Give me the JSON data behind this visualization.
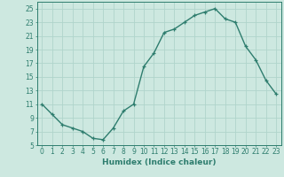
{
  "x": [
    0,
    1,
    2,
    3,
    4,
    5,
    6,
    7,
    8,
    9,
    10,
    11,
    12,
    13,
    14,
    15,
    16,
    17,
    18,
    19,
    20,
    21,
    22,
    23
  ],
  "y": [
    11,
    9.5,
    8,
    7.5,
    7,
    6,
    5.8,
    7.5,
    10,
    11,
    16.5,
    18.5,
    21.5,
    22,
    23,
    24,
    24.5,
    25,
    23.5,
    23,
    19.5,
    17.5,
    14.5,
    12.5
  ],
  "line_color": "#2e7d6e",
  "marker": "+",
  "bg_color": "#cde8e0",
  "grid_color": "#b0d4cb",
  "xlabel": "Humidex (Indice chaleur)",
  "ylabel": "",
  "xlim": [
    -0.5,
    23.5
  ],
  "ylim": [
    5,
    26
  ],
  "yticks": [
    5,
    7,
    9,
    11,
    13,
    15,
    17,
    19,
    21,
    23,
    25
  ],
  "xticks": [
    0,
    1,
    2,
    3,
    4,
    5,
    6,
    7,
    8,
    9,
    10,
    11,
    12,
    13,
    14,
    15,
    16,
    17,
    18,
    19,
    20,
    21,
    22,
    23
  ],
  "xtick_labels": [
    "0",
    "1",
    "2",
    "3",
    "4",
    "5",
    "6",
    "7",
    "8",
    "9",
    "10",
    "11",
    "12",
    "13",
    "14",
    "15",
    "16",
    "17",
    "18",
    "19",
    "20",
    "21",
    "22",
    "23"
  ],
  "tick_color": "#2e7d6e",
  "label_fontsize": 6.5,
  "tick_fontsize": 5.5,
  "linewidth": 1.0,
  "markersize": 3.5,
  "markeredgewidth": 0.9
}
